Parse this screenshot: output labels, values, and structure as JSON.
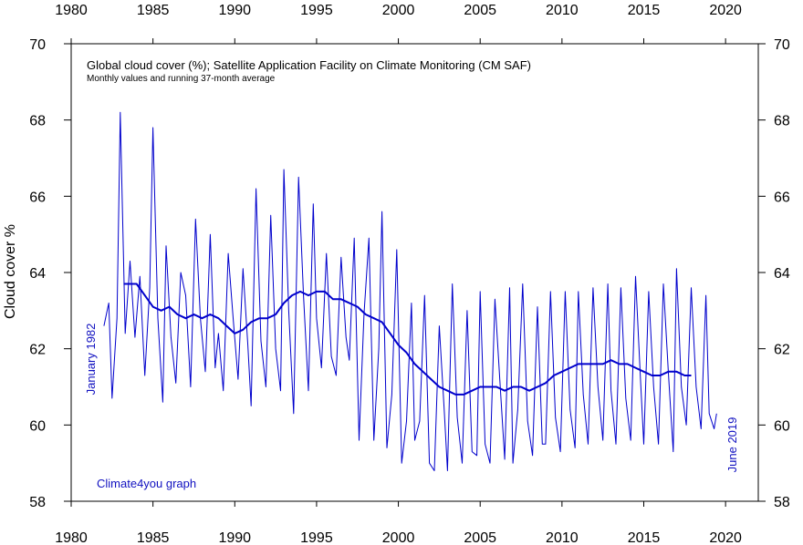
{
  "chart_data": {
    "type": "line",
    "title": "Global cloud cover (%); Satellite Application Facility on Climate Monitoring (CM SAF)",
    "subtitle": "Monthly values and running 37-month average",
    "ylabel": "Cloud cover %",
    "xlabel": "",
    "xlim": [
      1980,
      2022
    ],
    "ylim": [
      58,
      70
    ],
    "x_ticks": [
      "1980",
      "1985",
      "1990",
      "1995",
      "2000",
      "2005",
      "2010",
      "2015",
      "2020"
    ],
    "y_ticks": [
      "58",
      "60",
      "62",
      "64",
      "66",
      "68",
      "70"
    ],
    "annotations": {
      "start": "January 1982",
      "end": "June 2019",
      "credit": "Climate4you graph"
    },
    "line_color": "#0000cc",
    "series": [
      {
        "name": "Monthly values",
        "x": [
          1982.0,
          1982.3,
          1982.5,
          1982.8,
          1983.0,
          1983.3,
          1983.6,
          1983.9,
          1984.2,
          1984.5,
          1984.8,
          1985.0,
          1985.3,
          1985.6,
          1985.8,
          1986.1,
          1986.4,
          1986.7,
          1987.0,
          1987.3,
          1987.6,
          1987.9,
          1988.2,
          1988.5,
          1988.8,
          1989.0,
          1989.3,
          1989.6,
          1989.9,
          1990.2,
          1990.5,
          1990.8,
          1991.0,
          1991.3,
          1991.6,
          1991.9,
          1992.2,
          1992.5,
          1992.8,
          1993.0,
          1993.3,
          1993.6,
          1993.9,
          1994.2,
          1994.5,
          1994.8,
          1995.0,
          1995.3,
          1995.6,
          1995.9,
          1996.2,
          1996.5,
          1996.8,
          1997.0,
          1997.3,
          1997.6,
          1997.9,
          1998.2,
          1998.5,
          1998.8,
          1999.0,
          1999.3,
          1999.6,
          1999.9,
          2000.2,
          2000.5,
          2000.8,
          2001.0,
          2001.3,
          2001.6,
          2001.9,
          2002.2,
          2002.5,
          2002.8,
          2003.0,
          2003.3,
          2003.6,
          2003.9,
          2004.2,
          2004.5,
          2004.8,
          2005.0,
          2005.3,
          2005.6,
          2005.9,
          2006.2,
          2006.5,
          2006.8,
          2007.0,
          2007.3,
          2007.6,
          2007.9,
          2008.2,
          2008.5,
          2008.8,
          2009.0,
          2009.3,
          2009.6,
          2009.9,
          2010.2,
          2010.5,
          2010.8,
          2011.0,
          2011.3,
          2011.6,
          2011.9,
          2012.2,
          2012.5,
          2012.8,
          2013.0,
          2013.3,
          2013.6,
          2013.9,
          2014.2,
          2014.5,
          2014.8,
          2015.0,
          2015.3,
          2015.6,
          2015.9,
          2016.2,
          2016.5,
          2016.8,
          2017.0,
          2017.3,
          2017.6,
          2017.9,
          2018.2,
          2018.5,
          2018.8,
          2019.0,
          2019.3,
          2019.45
        ],
        "values": [
          62.6,
          63.2,
          60.7,
          62.8,
          68.2,
          62.4,
          64.3,
          62.3,
          63.9,
          61.3,
          63.6,
          67.8,
          62.8,
          60.6,
          64.7,
          62.3,
          61.1,
          64.0,
          63.4,
          61.0,
          65.4,
          62.8,
          61.4,
          65.0,
          61.5,
          62.4,
          60.9,
          64.5,
          62.8,
          61.2,
          64.1,
          62.1,
          60.5,
          66.2,
          62.2,
          61.0,
          65.5,
          62.0,
          60.9,
          66.7,
          63.0,
          60.3,
          66.5,
          63.4,
          60.9,
          65.8,
          62.8,
          61.5,
          64.5,
          61.8,
          61.3,
          64.4,
          62.3,
          61.7,
          64.9,
          59.6,
          62.9,
          64.9,
          59.6,
          62.0,
          65.6,
          59.4,
          60.8,
          64.6,
          59.0,
          60.1,
          63.2,
          59.6,
          60.1,
          63.4,
          59.0,
          58.8,
          62.6,
          60.4,
          58.8,
          63.7,
          60.2,
          59.0,
          63.0,
          59.3,
          59.2,
          63.5,
          59.5,
          59.0,
          63.3,
          61.2,
          59.1,
          63.6,
          59.0,
          60.4,
          63.7,
          60.1,
          59.2,
          63.1,
          59.5,
          59.5,
          63.5,
          60.2,
          59.3,
          63.5,
          60.4,
          59.4,
          63.5,
          60.8,
          59.5,
          63.6,
          61.0,
          59.6,
          63.7,
          60.9,
          59.5,
          63.6,
          60.7,
          59.6,
          63.9,
          61.2,
          59.5,
          63.5,
          61.0,
          59.5,
          63.7,
          61.4,
          59.3,
          64.1,
          61.0,
          60.0,
          63.6,
          61.0,
          59.9,
          63.4,
          60.3,
          59.9,
          60.3
        ],
        "width": 1
      },
      {
        "name": "Running 37-month average",
        "x": [
          1983.2,
          1983.5,
          1984.0,
          1984.5,
          1985.0,
          1985.5,
          1986.0,
          1986.5,
          1987.0,
          1987.5,
          1988.0,
          1988.5,
          1989.0,
          1989.5,
          1990.0,
          1990.5,
          1991.0,
          1991.5,
          1992.0,
          1992.5,
          1993.0,
          1993.5,
          1994.0,
          1994.5,
          1995.0,
          1995.5,
          1996.0,
          1996.5,
          1997.0,
          1997.5,
          1998.0,
          1998.5,
          1999.0,
          1999.5,
          2000.0,
          2000.5,
          2001.0,
          2001.5,
          2002.0,
          2002.5,
          2003.0,
          2003.5,
          2004.0,
          2004.5,
          2005.0,
          2005.5,
          2006.0,
          2006.5,
          2007.0,
          2007.5,
          2008.0,
          2008.5,
          2009.0,
          2009.5,
          2010.0,
          2010.5,
          2011.0,
          2011.5,
          2012.0,
          2012.5,
          2013.0,
          2013.5,
          2014.0,
          2014.5,
          2015.0,
          2015.5,
          2016.0,
          2016.5,
          2017.0,
          2017.5,
          2017.9
        ],
        "values": [
          63.7,
          63.7,
          63.7,
          63.4,
          63.1,
          63.0,
          63.1,
          62.9,
          62.8,
          62.9,
          62.8,
          62.9,
          62.8,
          62.6,
          62.4,
          62.5,
          62.7,
          62.8,
          62.8,
          62.9,
          63.2,
          63.4,
          63.5,
          63.4,
          63.5,
          63.5,
          63.3,
          63.3,
          63.2,
          63.1,
          62.9,
          62.8,
          62.7,
          62.4,
          62.1,
          61.9,
          61.6,
          61.4,
          61.2,
          61.0,
          60.9,
          60.8,
          60.8,
          60.9,
          61.0,
          61.0,
          61.0,
          60.9,
          61.0,
          61.0,
          60.9,
          61.0,
          61.1,
          61.3,
          61.4,
          61.5,
          61.6,
          61.6,
          61.6,
          61.6,
          61.7,
          61.6,
          61.6,
          61.5,
          61.4,
          61.3,
          61.3,
          61.4,
          61.4,
          61.3,
          61.3
        ],
        "width": 2
      }
    ]
  }
}
